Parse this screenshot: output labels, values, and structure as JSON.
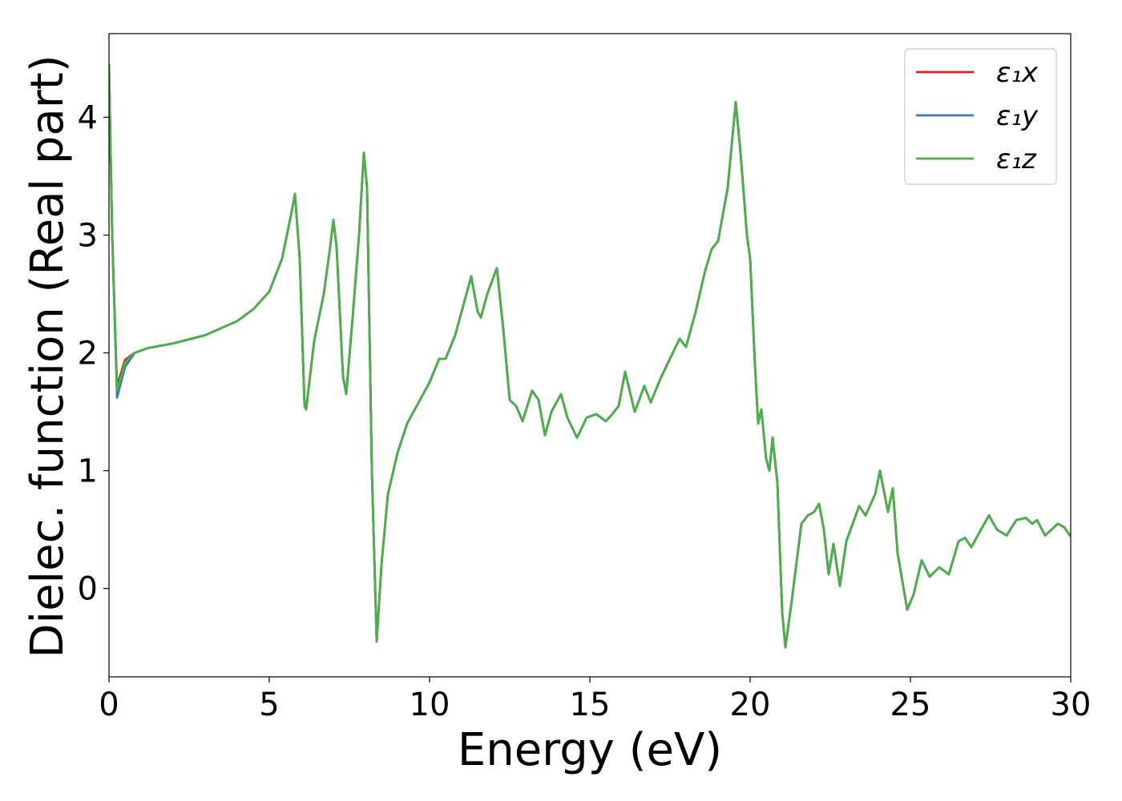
{
  "chart_data": {
    "type": "line",
    "xlabel": "Energy (eV)",
    "ylabel": "Dielec. function (Real part)",
    "xlim": [
      0,
      30
    ],
    "ylim": [
      -0.75,
      4.71
    ],
    "xticks": [
      0,
      5,
      10,
      15,
      20,
      25,
      30
    ],
    "yticks": [
      0,
      1,
      2,
      3,
      4
    ],
    "legend": "upper right",
    "grid": false,
    "x": [
      0,
      0.1,
      0.25,
      0.5,
      0.8,
      1.2,
      2,
      3,
      4,
      4.5,
      5,
      5.4,
      5.7,
      5.8,
      5.95,
      6.1,
      6.15,
      6.4,
      6.7,
      6.9,
      7.0,
      7.1,
      7.3,
      7.4,
      7.6,
      7.8,
      7.95,
      8.05,
      8.2,
      8.35,
      8.5,
      8.7,
      9.0,
      9.3,
      9.7,
      10.0,
      10.3,
      10.5,
      10.8,
      11.1,
      11.3,
      11.5,
      11.6,
      11.8,
      12.1,
      12.3,
      12.5,
      12.7,
      12.9,
      13.2,
      13.4,
      13.6,
      13.8,
      14.1,
      14.3,
      14.6,
      14.9,
      15.2,
      15.5,
      15.7,
      15.9,
      16.1,
      16.4,
      16.7,
      16.9,
      17.2,
      17.5,
      17.8,
      18.0,
      18.3,
      18.6,
      18.8,
      19.0,
      19.3,
      19.55,
      19.7,
      19.9,
      20.0,
      20.15,
      20.25,
      20.35,
      20.5,
      20.6,
      20.7,
      20.85,
      21.0,
      21.1,
      21.3,
      21.6,
      21.8,
      22.0,
      22.15,
      22.3,
      22.45,
      22.6,
      22.8,
      23.0,
      23.4,
      23.6,
      23.9,
      24.05,
      24.3,
      24.45,
      24.6,
      24.9,
      25.1,
      25.35,
      25.6,
      25.9,
      26.2,
      26.5,
      26.7,
      26.9,
      27.2,
      27.45,
      27.7,
      28.0,
      28.3,
      28.6,
      28.8,
      28.95,
      29.2,
      29.6,
      29.8,
      30
    ],
    "series": [
      {
        "name": "ε₁x",
        "color": "#e41a1c",
        "values": [
          4.45,
          3.0,
          1.72,
          1.94,
          2.0,
          2.04,
          2.08,
          2.15,
          2.27,
          2.37,
          2.52,
          2.8,
          3.2,
          3.35,
          2.8,
          1.55,
          1.52,
          2.1,
          2.5,
          2.9,
          3.13,
          2.9,
          1.8,
          1.65,
          2.3,
          3.0,
          3.7,
          3.4,
          1.0,
          -0.45,
          0.2,
          0.8,
          1.15,
          1.4,
          1.6,
          1.75,
          1.95,
          1.95,
          2.15,
          2.45,
          2.65,
          2.35,
          2.3,
          2.5,
          2.72,
          2.2,
          1.6,
          1.55,
          1.42,
          1.68,
          1.6,
          1.3,
          1.5,
          1.65,
          1.45,
          1.28,
          1.45,
          1.48,
          1.42,
          1.48,
          1.55,
          1.84,
          1.5,
          1.72,
          1.58,
          1.78,
          1.95,
          2.12,
          2.05,
          2.35,
          2.7,
          2.88,
          2.95,
          3.4,
          4.13,
          3.7,
          3.0,
          2.8,
          1.9,
          1.4,
          1.52,
          1.1,
          1.0,
          1.28,
          0.9,
          -0.2,
          -0.5,
          -0.1,
          0.55,
          0.62,
          0.65,
          0.72,
          0.5,
          0.12,
          0.38,
          0.02,
          0.4,
          0.7,
          0.62,
          0.8,
          1.0,
          0.65,
          0.85,
          0.3,
          -0.18,
          -0.05,
          0.24,
          0.1,
          0.18,
          0.12,
          0.4,
          0.43,
          0.35,
          0.5,
          0.62,
          0.5,
          0.45,
          0.58,
          0.6,
          0.55,
          0.58,
          0.45,
          0.55,
          0.52,
          0.44
        ]
      },
      {
        "name": "ε₁y",
        "color": "#377eb8",
        "values": [
          4.45,
          3.0,
          1.62,
          1.88,
          2.0,
          2.04,
          2.08,
          2.15,
          2.27,
          2.37,
          2.52,
          2.8,
          3.2,
          3.35,
          2.8,
          1.55,
          1.52,
          2.1,
          2.5,
          2.9,
          3.13,
          2.9,
          1.8,
          1.65,
          2.3,
          3.0,
          3.7,
          3.4,
          1.0,
          -0.45,
          0.2,
          0.8,
          1.15,
          1.4,
          1.6,
          1.75,
          1.95,
          1.95,
          2.15,
          2.45,
          2.65,
          2.35,
          2.3,
          2.5,
          2.72,
          2.2,
          1.6,
          1.55,
          1.42,
          1.68,
          1.6,
          1.3,
          1.5,
          1.65,
          1.45,
          1.28,
          1.45,
          1.48,
          1.42,
          1.48,
          1.55,
          1.84,
          1.5,
          1.72,
          1.58,
          1.78,
          1.95,
          2.12,
          2.05,
          2.35,
          2.7,
          2.88,
          2.95,
          3.4,
          4.13,
          3.7,
          3.0,
          2.8,
          1.9,
          1.4,
          1.52,
          1.1,
          1.0,
          1.28,
          0.9,
          -0.2,
          -0.5,
          -0.1,
          0.55,
          0.62,
          0.65,
          0.72,
          0.5,
          0.12,
          0.38,
          0.02,
          0.4,
          0.7,
          0.62,
          0.8,
          1.0,
          0.65,
          0.85,
          0.3,
          -0.18,
          -0.05,
          0.24,
          0.1,
          0.18,
          0.12,
          0.4,
          0.43,
          0.35,
          0.5,
          0.62,
          0.5,
          0.45,
          0.58,
          0.6,
          0.55,
          0.58,
          0.45,
          0.55,
          0.52,
          0.44
        ]
      },
      {
        "name": "ε₁z",
        "color": "#4daf4a",
        "values": [
          4.45,
          3.0,
          1.68,
          1.92,
          2.0,
          2.04,
          2.08,
          2.15,
          2.27,
          2.37,
          2.52,
          2.8,
          3.2,
          3.35,
          2.8,
          1.55,
          1.52,
          2.1,
          2.5,
          2.9,
          3.13,
          2.9,
          1.8,
          1.65,
          2.3,
          3.0,
          3.7,
          3.4,
          1.0,
          -0.45,
          0.2,
          0.8,
          1.15,
          1.4,
          1.6,
          1.75,
          1.95,
          1.95,
          2.15,
          2.45,
          2.65,
          2.35,
          2.3,
          2.5,
          2.72,
          2.2,
          1.6,
          1.55,
          1.42,
          1.68,
          1.6,
          1.3,
          1.5,
          1.65,
          1.45,
          1.28,
          1.45,
          1.48,
          1.42,
          1.48,
          1.55,
          1.84,
          1.5,
          1.72,
          1.58,
          1.78,
          1.95,
          2.12,
          2.05,
          2.35,
          2.7,
          2.88,
          2.95,
          3.4,
          4.13,
          3.7,
          3.0,
          2.8,
          1.9,
          1.4,
          1.52,
          1.1,
          1.0,
          1.28,
          0.9,
          -0.2,
          -0.5,
          -0.1,
          0.55,
          0.62,
          0.65,
          0.72,
          0.5,
          0.12,
          0.38,
          0.02,
          0.4,
          0.7,
          0.62,
          0.8,
          1.0,
          0.65,
          0.85,
          0.3,
          -0.18,
          -0.05,
          0.24,
          0.1,
          0.18,
          0.12,
          0.4,
          0.43,
          0.35,
          0.5,
          0.62,
          0.5,
          0.45,
          0.58,
          0.6,
          0.55,
          0.58,
          0.45,
          0.55,
          0.52,
          0.44
        ]
      }
    ]
  }
}
